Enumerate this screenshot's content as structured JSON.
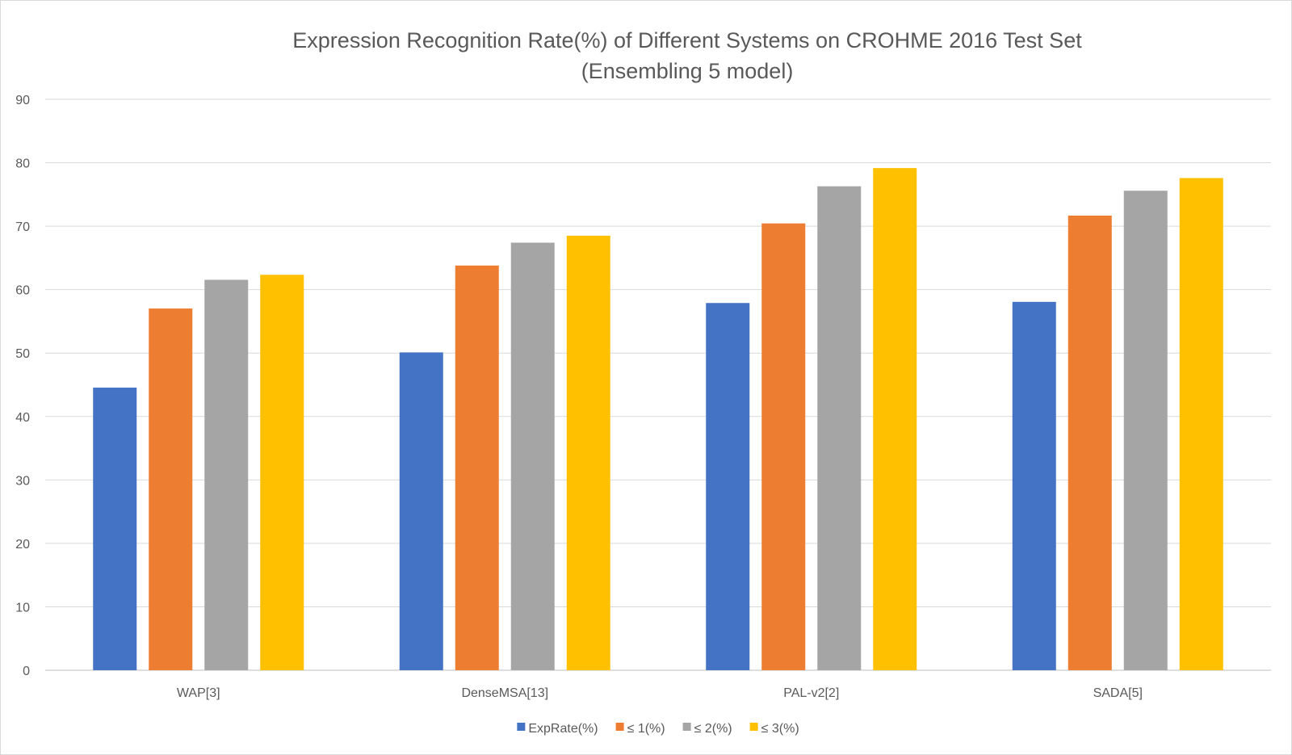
{
  "chart_data": {
    "type": "bar",
    "title": "Expression Recognition Rate(%) of Different Systems on CROHME 2016 Test Set",
    "subtitle": "(Ensembling 5 model)",
    "xlabel": "",
    "ylabel": "",
    "ylim": [
      0,
      90
    ],
    "yticks": [
      0,
      10,
      20,
      30,
      40,
      50,
      60,
      70,
      80,
      90
    ],
    "grid": true,
    "legend_position": "bottom",
    "categories": [
      "WAP[3]",
      "DenseMSA[13]",
      "PAL-v2[2]",
      "SADA[5]"
    ],
    "series": [
      {
        "name": "ExpRate(%)",
        "color": "#4472c4",
        "values": [
          44.55,
          50.1,
          57.89,
          58.07
        ]
      },
      {
        "name": "≤ 1(%)",
        "color": "#ed7d31",
        "values": [
          57.02,
          63.8,
          70.44,
          71.67
        ]
      },
      {
        "name": "≤ 2(%)",
        "color": "#a5a5a5",
        "values": [
          61.55,
          67.4,
          76.29,
          75.59
        ]
      },
      {
        "name": "≤ 3(%)",
        "color": "#ffc000",
        "values": [
          62.34,
          68.5,
          79.16,
          77.59
        ]
      }
    ]
  }
}
